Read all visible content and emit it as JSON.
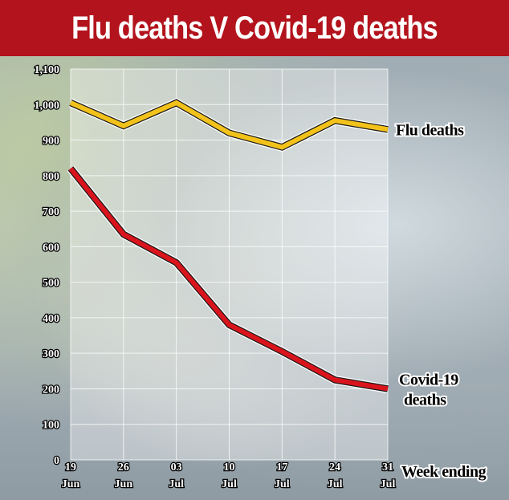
{
  "chart_data": {
    "type": "line",
    "title": "Flu deaths V Covid-19 deaths",
    "xlabel": "Week ending",
    "ylabel": "",
    "categories": [
      {
        "day": "19",
        "month": "Jun"
      },
      {
        "day": "26",
        "month": "Jun"
      },
      {
        "day": "03",
        "month": "Jul"
      },
      {
        "day": "10",
        "month": "Jul"
      },
      {
        "day": "17",
        "month": "Jul"
      },
      {
        "day": "24",
        "month": "Jul"
      },
      {
        "day": "31",
        "month": "Jul"
      }
    ],
    "yticks": [
      "0",
      "100",
      "200",
      "300",
      "400",
      "500",
      "600",
      "700",
      "800",
      "900",
      "1,000",
      "1,100"
    ],
    "ylim": [
      0,
      1100
    ],
    "grid": true,
    "series": [
      {
        "name": "Flu deaths",
        "label_lines": [
          "Flu deaths"
        ],
        "color": "#f2c21b",
        "values": [
          1005,
          940,
          1005,
          920,
          880,
          955,
          930
        ]
      },
      {
        "name": "Covid-19 deaths",
        "label_lines": [
          "Covid-19",
          "deaths"
        ],
        "color": "#d9141c",
        "values": [
          820,
          635,
          555,
          380,
          305,
          225,
          200
        ]
      }
    ]
  }
}
